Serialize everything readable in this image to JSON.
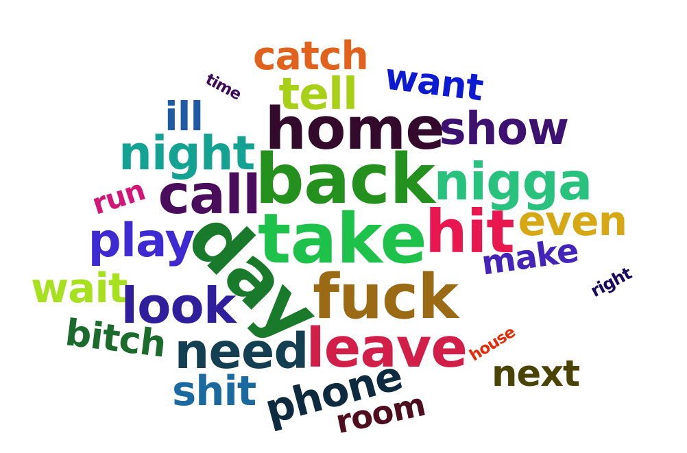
{
  "words": {
    "back": "back",
    "take": "take",
    "fuck": "fuck",
    "day": "day",
    "hit": "hit",
    "home": "home",
    "leave": "leave",
    "nigga": "nigga",
    "call": "call",
    "need": "need",
    "look": "look",
    "make": "make",
    "night": "night",
    "house": "house",
    "right": "right",
    "phone": "phone",
    "time": "time",
    "catch": "catch",
    "want": "want",
    "show": "show",
    "tell": "tell",
    "ill": "ill",
    "run": "run",
    "play": "play",
    "even": "even",
    "wait": "wait",
    "bitch": "bitch",
    "shit": "shit",
    "room": "room",
    "next": "next"
  }
}
